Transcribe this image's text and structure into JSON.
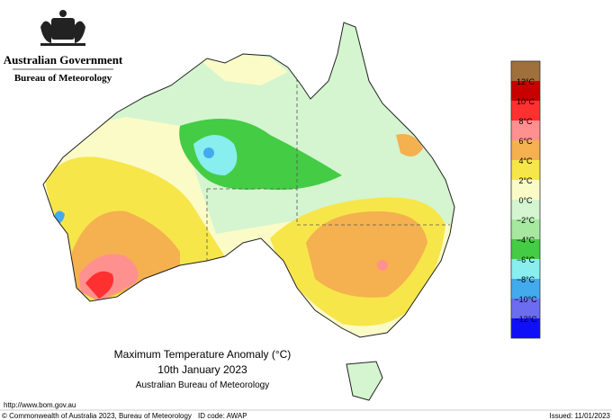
{
  "header": {
    "government": "Australian Government",
    "bureau": "Bureau of Meteorology"
  },
  "title": {
    "line1": "Maximum Temperature Anomaly (°C)",
    "line2": "10th January 2023",
    "line3": "Australian Bureau of Meteorology"
  },
  "legend": {
    "labels": [
      "12°C",
      "10°C",
      "8°C",
      "6°C",
      "4°C",
      "2°C",
      "0°C",
      "−2°C",
      "−4°C",
      "−6°C",
      "−8°C",
      "−10°C",
      "−12°C"
    ],
    "colors": [
      "#a0703c",
      "#c80000",
      "#ff3030",
      "#ff9090",
      "#f5b050",
      "#f7e64a",
      "#fbfbc8",
      "#d4f5cf",
      "#a6e8a0",
      "#44cc44",
      "#88eeee",
      "#44aaee",
      "#6c6cf0",
      "#1010f8"
    ]
  },
  "footer": {
    "url": "http://www.bom.gov.au",
    "copyright": "© Commonwealth of Australia 2023, Bureau of Meteorology",
    "id": "ID code: AWAP",
    "issued": "Issued: 11/01/2023"
  }
}
